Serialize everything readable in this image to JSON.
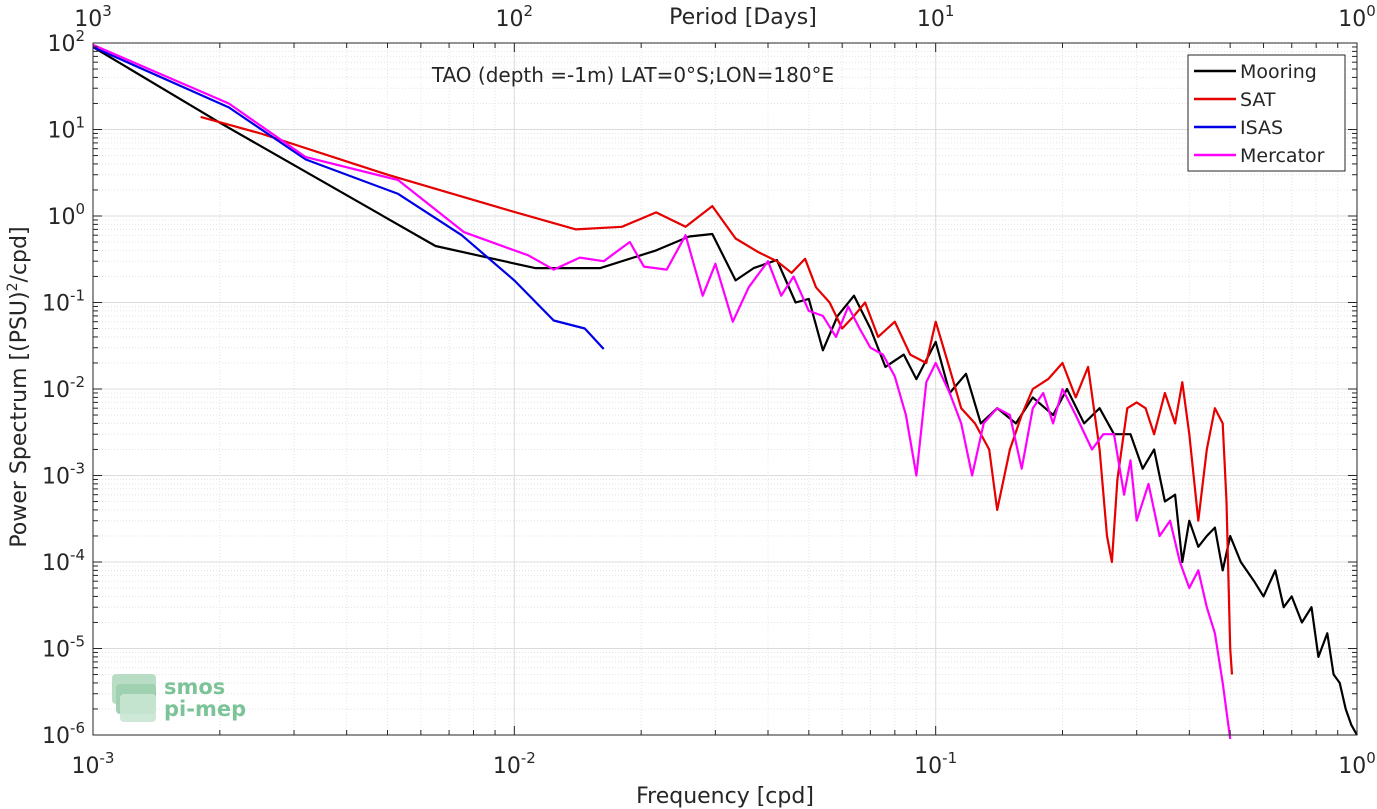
{
  "chart_data": {
    "type": "line",
    "title": "TAO (depth =-1m) LAT=0°S;LON=180°E",
    "xlabel": "Frequency [cpd]",
    "ylabel_main": "Power Spectrum [(PSU)",
    "ylabel_sup": "2",
    "ylabel_tail": "/cpd]",
    "top_axis_label": "Period [Days]",
    "x_scale": "log",
    "y_scale": "log",
    "xlim": [
      0.001,
      1
    ],
    "ylim": [
      1e-06,
      100
    ],
    "x_ticks": [
      0.001,
      0.01,
      0.1,
      1
    ],
    "x_tick_labels": [
      {
        "base": "10",
        "exp": "-3"
      },
      {
        "base": "10",
        "exp": "-2"
      },
      {
        "base": "10",
        "exp": "-1"
      },
      {
        "base": "10",
        "exp": "0"
      }
    ],
    "y_ticks": [
      1e-06,
      1e-05,
      0.0001,
      0.001,
      0.01,
      0.1,
      1,
      10,
      100
    ],
    "y_tick_labels": [
      {
        "base": "10",
        "exp": "-6"
      },
      {
        "base": "10",
        "exp": "-5"
      },
      {
        "base": "10",
        "exp": "-4"
      },
      {
        "base": "10",
        "exp": "-3"
      },
      {
        "base": "10",
        "exp": "-2"
      },
      {
        "base": "10",
        "exp": "-1"
      },
      {
        "base": "10",
        "exp": "0"
      },
      {
        "base": "10",
        "exp": "1"
      },
      {
        "base": "10",
        "exp": "2"
      }
    ],
    "top_ticks_freq": [
      0.001,
      0.01,
      0.1,
      1
    ],
    "top_tick_labels": [
      {
        "base": "10",
        "exp": "3"
      },
      {
        "base": "10",
        "exp": "2"
      },
      {
        "base": "10",
        "exp": "1"
      },
      {
        "base": "10",
        "exp": "0"
      }
    ],
    "grid": true,
    "legend_position": "top-right",
    "series": [
      {
        "name": "Mooring",
        "color": "#000000",
        "points": [
          [
            0.001,
            90
          ],
          [
            0.002,
            12
          ],
          [
            0.0065,
            0.45
          ],
          [
            0.0112,
            0.25
          ],
          [
            0.016,
            0.25
          ],
          [
            0.0217,
            0.4
          ],
          [
            0.026,
            0.58
          ],
          [
            0.0295,
            0.62
          ],
          [
            0.0335,
            0.18
          ],
          [
            0.037,
            0.25
          ],
          [
            0.042,
            0.31
          ],
          [
            0.0465,
            0.1
          ],
          [
            0.05,
            0.11
          ],
          [
            0.054,
            0.028
          ],
          [
            0.0585,
            0.07
          ],
          [
            0.064,
            0.12
          ],
          [
            0.07,
            0.05
          ],
          [
            0.076,
            0.018
          ],
          [
            0.084,
            0.025
          ],
          [
            0.09,
            0.013
          ],
          [
            0.1,
            0.035
          ],
          [
            0.108,
            0.009
          ],
          [
            0.118,
            0.015
          ],
          [
            0.128,
            0.004
          ],
          [
            0.14,
            0.006
          ],
          [
            0.155,
            0.004
          ],
          [
            0.17,
            0.008
          ],
          [
            0.19,
            0.005
          ],
          [
            0.205,
            0.01
          ],
          [
            0.225,
            0.004
          ],
          [
            0.245,
            0.006
          ],
          [
            0.265,
            0.003
          ],
          [
            0.29,
            0.003
          ],
          [
            0.31,
            0.0012
          ],
          [
            0.33,
            0.002
          ],
          [
            0.35,
            0.0005
          ],
          [
            0.37,
            0.0006
          ],
          [
            0.385,
            0.0001
          ],
          [
            0.4,
            0.0003
          ],
          [
            0.42,
            0.00015
          ],
          [
            0.44,
            0.0002
          ],
          [
            0.46,
            0.00025
          ],
          [
            0.48,
            8e-05
          ],
          [
            0.5,
            0.0002
          ],
          [
            0.53,
            0.0001
          ],
          [
            0.57,
            6e-05
          ],
          [
            0.6,
            4e-05
          ],
          [
            0.64,
            8e-05
          ],
          [
            0.67,
            3e-05
          ],
          [
            0.7,
            4e-05
          ],
          [
            0.74,
            2e-05
          ],
          [
            0.78,
            3e-05
          ],
          [
            0.81,
            8e-06
          ],
          [
            0.85,
            1.5e-05
          ],
          [
            0.88,
            5e-06
          ],
          [
            0.91,
            4e-06
          ],
          [
            0.94,
            2e-06
          ],
          [
            0.97,
            1.3e-06
          ],
          [
            1.0,
            1e-06
          ]
        ]
      },
      {
        "name": "SAT",
        "color": "#e60000",
        "points": [
          [
            0.0018,
            14
          ],
          [
            0.0025,
            9
          ],
          [
            0.005,
            3
          ],
          [
            0.0095,
            1.2
          ],
          [
            0.014,
            0.7
          ],
          [
            0.018,
            0.75
          ],
          [
            0.0217,
            1.1
          ],
          [
            0.0255,
            0.75
          ],
          [
            0.0295,
            1.3
          ],
          [
            0.0335,
            0.55
          ],
          [
            0.038,
            0.38
          ],
          [
            0.042,
            0.3
          ],
          [
            0.0455,
            0.22
          ],
          [
            0.049,
            0.32
          ],
          [
            0.052,
            0.15
          ],
          [
            0.056,
            0.1
          ],
          [
            0.06,
            0.05
          ],
          [
            0.064,
            0.07
          ],
          [
            0.068,
            0.1
          ],
          [
            0.073,
            0.04
          ],
          [
            0.08,
            0.06
          ],
          [
            0.087,
            0.025
          ],
          [
            0.095,
            0.02
          ],
          [
            0.1,
            0.06
          ],
          [
            0.107,
            0.02
          ],
          [
            0.115,
            0.006
          ],
          [
            0.124,
            0.004
          ],
          [
            0.134,
            0.002
          ],
          [
            0.14,
            0.0004
          ],
          [
            0.15,
            0.002
          ],
          [
            0.16,
            0.005
          ],
          [
            0.17,
            0.01
          ],
          [
            0.185,
            0.013
          ],
          [
            0.2,
            0.02
          ],
          [
            0.215,
            0.008
          ],
          [
            0.23,
            0.018
          ],
          [
            0.245,
            0.002
          ],
          [
            0.255,
            0.0002
          ],
          [
            0.262,
            0.0001
          ],
          [
            0.27,
            0.0009
          ],
          [
            0.285,
            0.006
          ],
          [
            0.3,
            0.007
          ],
          [
            0.315,
            0.006
          ],
          [
            0.33,
            0.003
          ],
          [
            0.35,
            0.009
          ],
          [
            0.37,
            0.004
          ],
          [
            0.385,
            0.012
          ],
          [
            0.4,
            0.003
          ],
          [
            0.42,
            0.0003
          ],
          [
            0.44,
            0.002
          ],
          [
            0.46,
            0.006
          ],
          [
            0.48,
            0.004
          ],
          [
            0.49,
            0.0005
          ],
          [
            0.5,
            1e-05
          ],
          [
            0.505,
            5e-06
          ]
        ]
      },
      {
        "name": "ISAS",
        "color": "#0000e6",
        "points": [
          [
            0.001,
            90
          ],
          [
            0.0021,
            18
          ],
          [
            0.0032,
            4.5
          ],
          [
            0.0053,
            1.8
          ],
          [
            0.0075,
            0.6
          ],
          [
            0.01,
            0.18
          ],
          [
            0.0124,
            0.062
          ],
          [
            0.0147,
            0.05
          ],
          [
            0.0163,
            0.029
          ]
        ]
      },
      {
        "name": "Mercator",
        "color": "#ff00ff",
        "points": [
          [
            0.001,
            95
          ],
          [
            0.0021,
            20
          ],
          [
            0.0032,
            4.8
          ],
          [
            0.0053,
            2.6
          ],
          [
            0.0076,
            0.65
          ],
          [
            0.0108,
            0.35
          ],
          [
            0.0124,
            0.24
          ],
          [
            0.0143,
            0.33
          ],
          [
            0.0163,
            0.3
          ],
          [
            0.0188,
            0.5
          ],
          [
            0.0203,
            0.26
          ],
          [
            0.023,
            0.24
          ],
          [
            0.0255,
            0.6
          ],
          [
            0.028,
            0.12
          ],
          [
            0.03,
            0.28
          ],
          [
            0.033,
            0.06
          ],
          [
            0.036,
            0.15
          ],
          [
            0.04,
            0.3
          ],
          [
            0.043,
            0.12
          ],
          [
            0.046,
            0.2
          ],
          [
            0.05,
            0.08
          ],
          [
            0.054,
            0.07
          ],
          [
            0.058,
            0.04
          ],
          [
            0.062,
            0.09
          ],
          [
            0.066,
            0.05
          ],
          [
            0.07,
            0.03
          ],
          [
            0.075,
            0.025
          ],
          [
            0.08,
            0.014
          ],
          [
            0.085,
            0.005
          ],
          [
            0.09,
            0.001
          ],
          [
            0.095,
            0.012
          ],
          [
            0.1,
            0.02
          ],
          [
            0.108,
            0.009
          ],
          [
            0.115,
            0.004
          ],
          [
            0.122,
            0.001
          ],
          [
            0.13,
            0.004
          ],
          [
            0.14,
            0.006
          ],
          [
            0.15,
            0.005
          ],
          [
            0.16,
            0.0012
          ],
          [
            0.17,
            0.006
          ],
          [
            0.18,
            0.009
          ],
          [
            0.19,
            0.004
          ],
          [
            0.2,
            0.01
          ],
          [
            0.215,
            0.005
          ],
          [
            0.235,
            0.002
          ],
          [
            0.25,
            0.003
          ],
          [
            0.265,
            0.003
          ],
          [
            0.28,
            0.0006
          ],
          [
            0.29,
            0.0015
          ],
          [
            0.3,
            0.0003
          ],
          [
            0.32,
            0.0008
          ],
          [
            0.34,
            0.0002
          ],
          [
            0.36,
            0.0003
          ],
          [
            0.38,
            0.0001
          ],
          [
            0.4,
            5e-05
          ],
          [
            0.42,
            8e-05
          ],
          [
            0.44,
            3e-05
          ],
          [
            0.46,
            1.5e-05
          ],
          [
            0.48,
            4e-06
          ],
          [
            0.5,
            9e-07
          ]
        ]
      }
    ]
  },
  "watermark": {
    "line1": "smos",
    "line2": "pi-mep"
  }
}
